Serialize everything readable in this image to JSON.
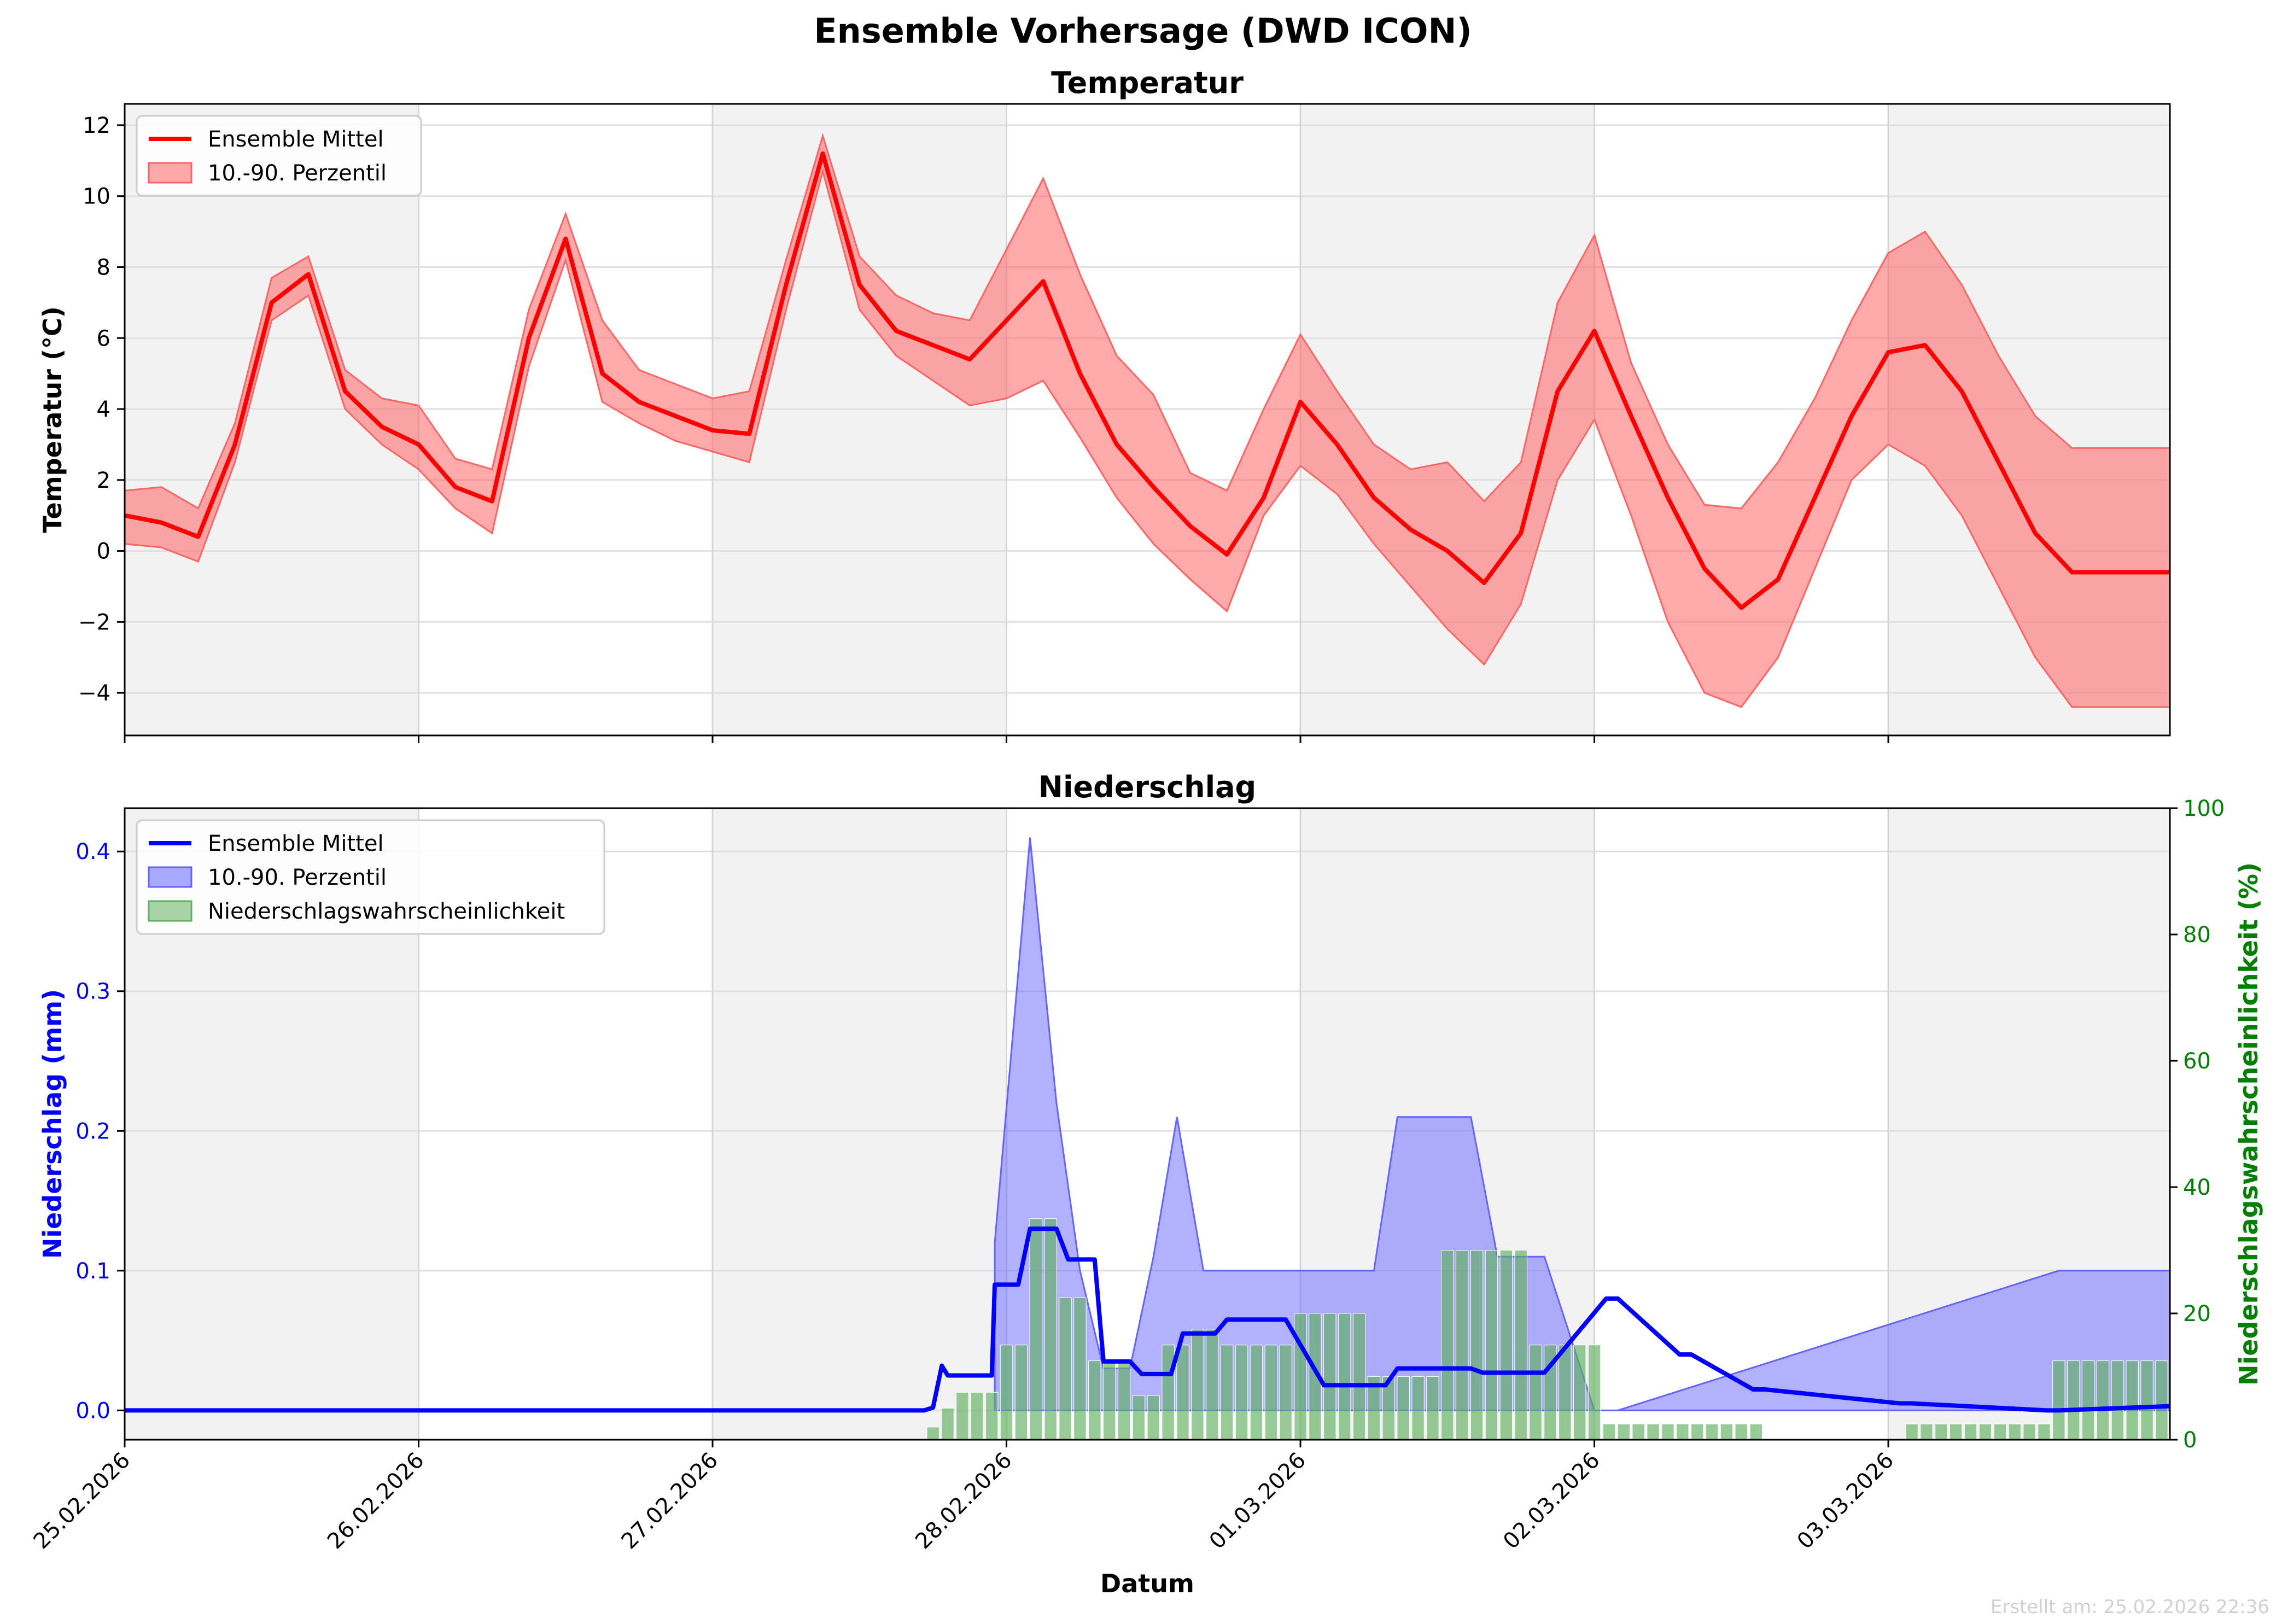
{
  "title": "Ensemble Vorhersage (DWD ICON)",
  "footer": "Erstellt am: 25.02.2026 22:36",
  "colors": {
    "temp_line": "#ff0000",
    "temp_band": "#ff6464",
    "precip_line": "#0000ff",
    "precip_band": "#6464ff",
    "prob_bar": "#60b060",
    "prob_axis": "#008000",
    "night_shade": "#f2f2f2"
  },
  "chart_data": [
    {
      "type": "line",
      "title": "Temperatur",
      "ylabel": "Temperatur (°C)",
      "ylim": [
        -5.2,
        12.6
      ],
      "yticks": [
        -4,
        -2,
        0,
        2,
        4,
        6,
        8,
        10,
        12
      ],
      "x_unit": "days since 25.02.2026 00:00",
      "xlim": [
        0,
        6.958
      ],
      "grid": true,
      "legend": "top-left",
      "series": [
        {
          "name": "Ensemble Mittel",
          "x": [
            0,
            0.125,
            0.25,
            0.375,
            0.5,
            0.625,
            0.75,
            0.875,
            1.0,
            1.125,
            1.25,
            1.375,
            1.5,
            1.625,
            1.75,
            1.875,
            2.0,
            2.125,
            2.25,
            2.375,
            2.5,
            2.625,
            2.75,
            2.875,
            3.0,
            3.125,
            3.25,
            3.375,
            3.5,
            3.625,
            3.75,
            3.875,
            4.0,
            4.125,
            4.25,
            4.375,
            4.5,
            4.625,
            4.75,
            4.875,
            5.0,
            5.125,
            5.25,
            5.375,
            5.5,
            5.625,
            5.75,
            5.875,
            6.0,
            6.125,
            6.25,
            6.375,
            6.5,
            6.625,
            6.75,
            6.875,
            6.958
          ],
          "y": [
            1.0,
            0.8,
            0.4,
            3.0,
            7.0,
            7.8,
            4.5,
            3.5,
            3.0,
            1.8,
            1.4,
            6.0,
            8.8,
            5.0,
            4.2,
            3.8,
            3.4,
            3.3,
            7.5,
            11.2,
            7.5,
            6.2,
            5.8,
            5.4,
            6.5,
            7.6,
            5.0,
            3.0,
            1.8,
            0.7,
            -0.1,
            1.5,
            4.2,
            3.0,
            1.5,
            0.6,
            0.0,
            -0.9,
            0.5,
            4.5,
            6.2,
            3.8,
            1.5,
            -0.5,
            -1.6,
            -0.8,
            1.5,
            3.8,
            5.6,
            5.8,
            4.5,
            2.5,
            0.5,
            -0.6,
            -0.6,
            -0.6,
            -0.6
          ]
        },
        {
          "name": "10.-90. Perzentil",
          "x": [
            0,
            0.125,
            0.25,
            0.375,
            0.5,
            0.625,
            0.75,
            0.875,
            1.0,
            1.125,
            1.25,
            1.375,
            1.5,
            1.625,
            1.75,
            1.875,
            2.0,
            2.125,
            2.25,
            2.375,
            2.5,
            2.625,
            2.75,
            2.875,
            3.0,
            3.125,
            3.25,
            3.375,
            3.5,
            3.625,
            3.75,
            3.875,
            4.0,
            4.125,
            4.25,
            4.375,
            4.5,
            4.625,
            4.75,
            4.875,
            5.0,
            5.125,
            5.25,
            5.375,
            5.5,
            5.625,
            5.75,
            5.875,
            6.0,
            6.125,
            6.25,
            6.375,
            6.5,
            6.625,
            6.75,
            6.875,
            6.958
          ],
          "low": [
            0.2,
            0.1,
            -0.3,
            2.5,
            6.5,
            7.2,
            4.0,
            3.0,
            2.3,
            1.2,
            0.5,
            5.2,
            8.2,
            4.2,
            3.6,
            3.1,
            2.8,
            2.5,
            6.8,
            10.7,
            6.8,
            5.5,
            4.8,
            4.1,
            4.3,
            4.8,
            3.2,
            1.5,
            0.2,
            -0.8,
            -1.7,
            1.0,
            2.4,
            1.6,
            0.2,
            -1.0,
            -2.2,
            -3.2,
            -1.5,
            2.0,
            3.7,
            1.0,
            -2.0,
            -4.0,
            -4.4,
            -3.0,
            -0.5,
            2.0,
            3.0,
            2.4,
            1.0,
            -1.0,
            -3.0,
            -4.4,
            -4.4,
            -4.4,
            -4.4
          ],
          "high": [
            1.7,
            1.8,
            1.2,
            3.6,
            7.7,
            8.3,
            5.1,
            4.3,
            4.1,
            2.6,
            2.3,
            6.8,
            9.5,
            6.5,
            5.1,
            4.7,
            4.3,
            4.5,
            8.2,
            11.7,
            8.3,
            7.2,
            6.7,
            6.5,
            8.5,
            10.5,
            7.8,
            5.5,
            4.4,
            2.2,
            1.7,
            4.0,
            6.1,
            4.5,
            3.0,
            2.3,
            2.5,
            1.4,
            2.5,
            7.0,
            8.9,
            5.3,
            3.0,
            1.3,
            1.2,
            2.5,
            4.3,
            6.5,
            8.4,
            9.0,
            7.5,
            5.5,
            3.8,
            2.9,
            2.9,
            2.9,
            2.9
          ]
        }
      ]
    },
    {
      "type": "line",
      "title": "Niederschlag",
      "ylabel": "Niederschlag (mm)",
      "ylabel_right": "Niederschlagswahrscheinlichkeit (%)",
      "xlabel": "Datum",
      "ylim": [
        -0.021,
        0.431
      ],
      "yticks": [
        0.0,
        0.1,
        0.2,
        0.3,
        0.4
      ],
      "ylim_right": [
        0,
        100
      ],
      "yticks_right": [
        0,
        20,
        40,
        60,
        80,
        100
      ],
      "x_unit": "days since 25.02.2026 00:00",
      "xlim": [
        0,
        6.958
      ],
      "xtick_labels": [
        "25.02.2026",
        "26.02.2026",
        "27.02.2026",
        "28.02.2026",
        "01.03.2026",
        "02.03.2026",
        "03.03.2026"
      ],
      "grid": true,
      "legend": "top-left",
      "series": [
        {
          "name": "Ensemble Mittel",
          "x": [
            0,
            2.72,
            2.75,
            2.78,
            2.8,
            2.95,
            2.96,
            3.04,
            3.08,
            3.17,
            3.21,
            3.3,
            3.33,
            3.42,
            3.46,
            3.56,
            3.6,
            3.71,
            3.75,
            3.95,
            4.08,
            4.29,
            4.33,
            4.58,
            4.62,
            4.83,
            5.04,
            5.08,
            5.29,
            5.33,
            5.54,
            5.58,
            6.04,
            6.08,
            6.54,
            6.58,
            6.958
          ],
          "y": [
            0,
            0,
            0.002,
            0.032,
            0.025,
            0.025,
            0.09,
            0.09,
            0.13,
            0.13,
            0.108,
            0.108,
            0.035,
            0.035,
            0.026,
            0.026,
            0.055,
            0.055,
            0.065,
            0.065,
            0.018,
            0.018,
            0.03,
            0.03,
            0.027,
            0.027,
            0.08,
            0.08,
            0.04,
            0.04,
            0.015,
            0.015,
            0.005,
            0.005,
            0.0,
            0.0,
            0.003
          ]
        },
        {
          "name": "10.-90. Perzentil",
          "x": [
            2.96,
            3.08,
            3.17,
            3.25,
            3.33,
            3.42,
            3.5,
            3.58,
            3.67,
            3.75,
            3.83,
            4.25,
            4.33,
            4.58,
            4.67,
            4.83,
            5.0,
            5.08,
            6.58,
            6.958
          ],
          "high": [
            0.12,
            0.41,
            0.22,
            0.1,
            0.03,
            0.03,
            0.11,
            0.21,
            0.1,
            0.1,
            0.1,
            0.1,
            0.21,
            0.21,
            0.11,
            0.11,
            0.0,
            0.0,
            0.1,
            0.1
          ],
          "low": [
            0,
            0,
            0,
            0,
            0,
            0,
            0,
            0,
            0,
            0,
            0,
            0,
            0,
            0,
            0,
            0,
            0,
            0,
            0,
            0
          ]
        },
        {
          "name": "Niederschlagswahrscheinlichkeit",
          "axis": "right",
          "bar_width_days": 0.0417,
          "x": [
            2.75,
            2.8,
            2.85,
            2.9,
            2.95,
            3.0,
            3.05,
            3.1,
            3.15,
            3.2,
            3.25,
            3.3,
            3.35,
            3.4,
            3.45,
            3.5,
            3.55,
            3.6,
            3.65,
            3.7,
            3.75,
            3.8,
            3.85,
            3.9,
            3.95,
            4.0,
            4.05,
            4.1,
            4.15,
            4.2,
            4.25,
            4.3,
            4.35,
            4.4,
            4.45,
            4.5,
            4.55,
            4.6,
            4.65,
            4.7,
            4.75,
            4.8,
            4.85,
            4.9,
            4.95,
            5.0,
            5.05,
            5.1,
            5.15,
            5.2,
            5.25,
            5.3,
            5.35,
            5.4,
            5.45,
            5.5,
            5.55,
            6.08,
            6.13,
            6.18,
            6.23,
            6.28,
            6.33,
            6.38,
            6.43,
            6.48,
            6.53,
            6.58,
            6.63,
            6.68,
            6.73,
            6.78,
            6.83,
            6.88,
            6.93
          ],
          "y": [
            2,
            5,
            7.5,
            7.5,
            7.5,
            15,
            15,
            35,
            35,
            22.5,
            22.5,
            12.5,
            12.5,
            12.5,
            7,
            7,
            15,
            15,
            17.5,
            17.5,
            15,
            15,
            15,
            15,
            15,
            20,
            20,
            20,
            20,
            20,
            10,
            10,
            10,
            10,
            10,
            30,
            30,
            30,
            30,
            30,
            30,
            15,
            15,
            15,
            15,
            15,
            2.5,
            2.5,
            2.5,
            2.5,
            2.5,
            2.5,
            2.5,
            2.5,
            2.5,
            2.5,
            2.5,
            2.5,
            2.5,
            2.5,
            2.5,
            2.5,
            2.5,
            2.5,
            2.5,
            2.5,
            2.5,
            12.5,
            12.5,
            12.5,
            12.5,
            12.5,
            12.5,
            12.5,
            12.5
          ]
        }
      ]
    }
  ]
}
